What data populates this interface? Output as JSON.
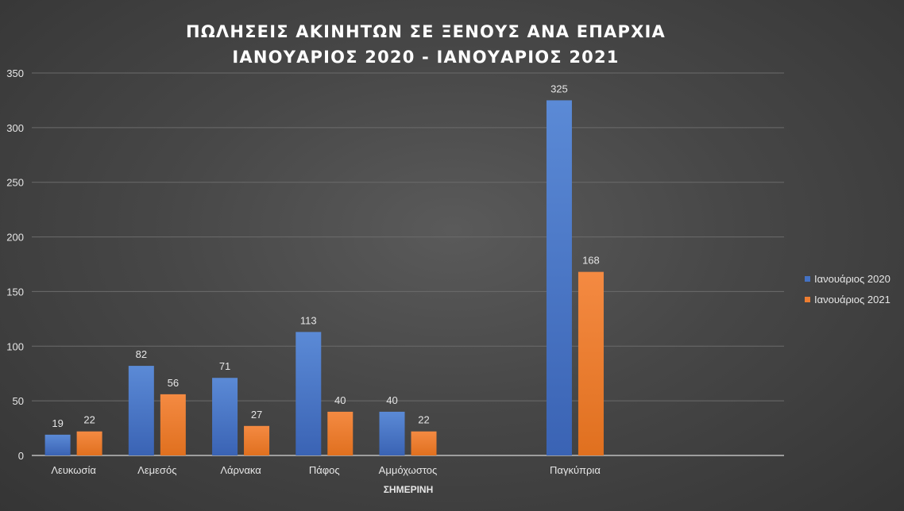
{
  "chart_data": {
    "type": "bar",
    "title": "ΠΩΛΗΣΕΙΣ ΑΚΙΝΗΤΩΝ ΣΕ ΞΕΝΟΥΣ ΑΝΑ ΕΠΑΡΧΙΑ",
    "subtitle": "ΙΑΝΟΥΑΡΙΟΣ 2020 - ΙΑΝΟΥΑΡΙΟΣ 2021",
    "categories": [
      "Λευκωσία",
      "Λεμεσός",
      "Λάρνακα",
      "Πάφος",
      "Αμμόχωστος",
      "",
      "Παγκύπρια",
      "",
      ""
    ],
    "xlabel": "ΣΗΜΕΡΙΝΗ",
    "ylabel": "",
    "ylim": [
      0,
      350
    ],
    "yticks": [
      0,
      50,
      100,
      150,
      200,
      250,
      300,
      350
    ],
    "grid": true,
    "legend_position": "right",
    "series": [
      {
        "name": "Ιανουάριος 2020",
        "color": "#4472c4",
        "values": [
          19,
          82,
          71,
          113,
          40,
          null,
          325,
          null,
          null
        ]
      },
      {
        "name": "Ιανουάριος 2021",
        "color": "#ed7d31",
        "values": [
          22,
          56,
          27,
          40,
          22,
          null,
          168,
          null,
          null
        ]
      }
    ]
  }
}
